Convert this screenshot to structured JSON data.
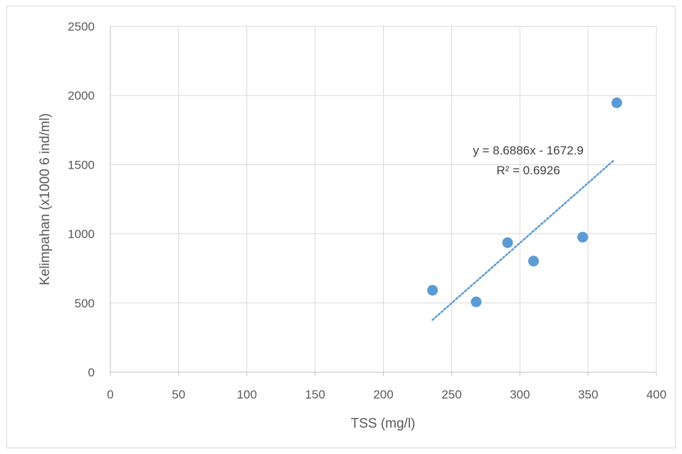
{
  "chart_data": {
    "type": "scatter",
    "title": "",
    "xlabel": "TSS (mg/l)",
    "ylabel": "Kelimpahan (x1000 6 ind/ml)",
    "xlim": [
      0,
      400
    ],
    "ylim": [
      0,
      2500
    ],
    "xticks": [
      "0",
      "50",
      "100",
      "150",
      "200",
      "250",
      "300",
      "350",
      "400"
    ],
    "yticks": [
      "0",
      "500",
      "1000",
      "1500",
      "2000",
      "2500"
    ],
    "grid": true,
    "legend": "none",
    "series": [
      {
        "points": [
          {
            "x": 236,
            "y": 592
          },
          {
            "x": 268,
            "y": 508
          },
          {
            "x": 291,
            "y": 936
          },
          {
            "x": 310,
            "y": 803
          },
          {
            "x": 346,
            "y": 976
          },
          {
            "x": 371,
            "y": 1947
          }
        ],
        "color": "#5b9bd5"
      }
    ],
    "trendline": {
      "type": "linear",
      "slope": 8.6886,
      "intercept": -1672.9,
      "x_range": [
        236,
        369
      ],
      "style": "dotted",
      "color": "#5b9bd5",
      "equation": "y = 8.6886x - 1672.9",
      "r_squared": "R² = 0.6926"
    }
  }
}
